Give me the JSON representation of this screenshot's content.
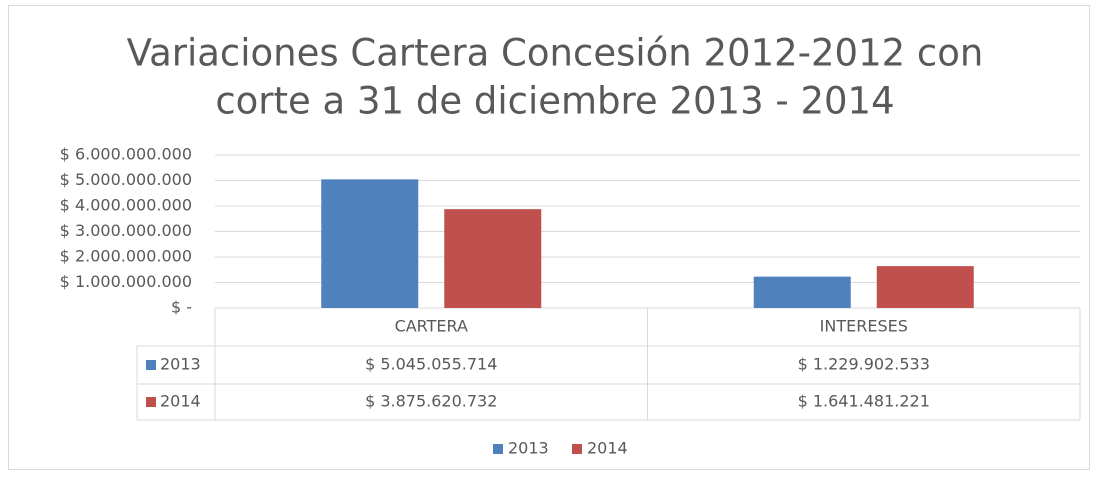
{
  "chart_data": {
    "type": "bar",
    "title": [
      "Variaciones Cartera Concesión 2012-2012 con",
      "corte a 31 de diciembre 2013 - 2014"
    ],
    "categories": [
      "CARTERA",
      "INTERESES"
    ],
    "series": [
      {
        "name": "2013",
        "color": "#4f81bd",
        "values": [
          5045055714,
          1229902533
        ],
        "value_labels": [
          "$ 5.045.055.714",
          "$ 1.229.902.533"
        ]
      },
      {
        "name": "2014",
        "color": "#c0504d",
        "values": [
          3875620732,
          1641481221
        ],
        "value_labels": [
          "$ 3.875.620.732",
          "$ 1.641.481.221"
        ]
      }
    ],
    "ylim": [
      0,
      6000000000
    ],
    "yticks": [
      {
        "value": 0,
        "label": "$ -"
      },
      {
        "value": 1000000000,
        "label": "$ 1.000.000.000"
      },
      {
        "value": 2000000000,
        "label": "$ 2.000.000.000"
      },
      {
        "value": 3000000000,
        "label": "$ 3.000.000.000"
      },
      {
        "value": 4000000000,
        "label": "$ 4.000.000.000"
      },
      {
        "value": 5000000000,
        "label": "$ 5.000.000.000"
      },
      {
        "value": 6000000000,
        "label": "$ 6.000.000.000"
      }
    ],
    "grid": true,
    "legend": "bottom"
  }
}
